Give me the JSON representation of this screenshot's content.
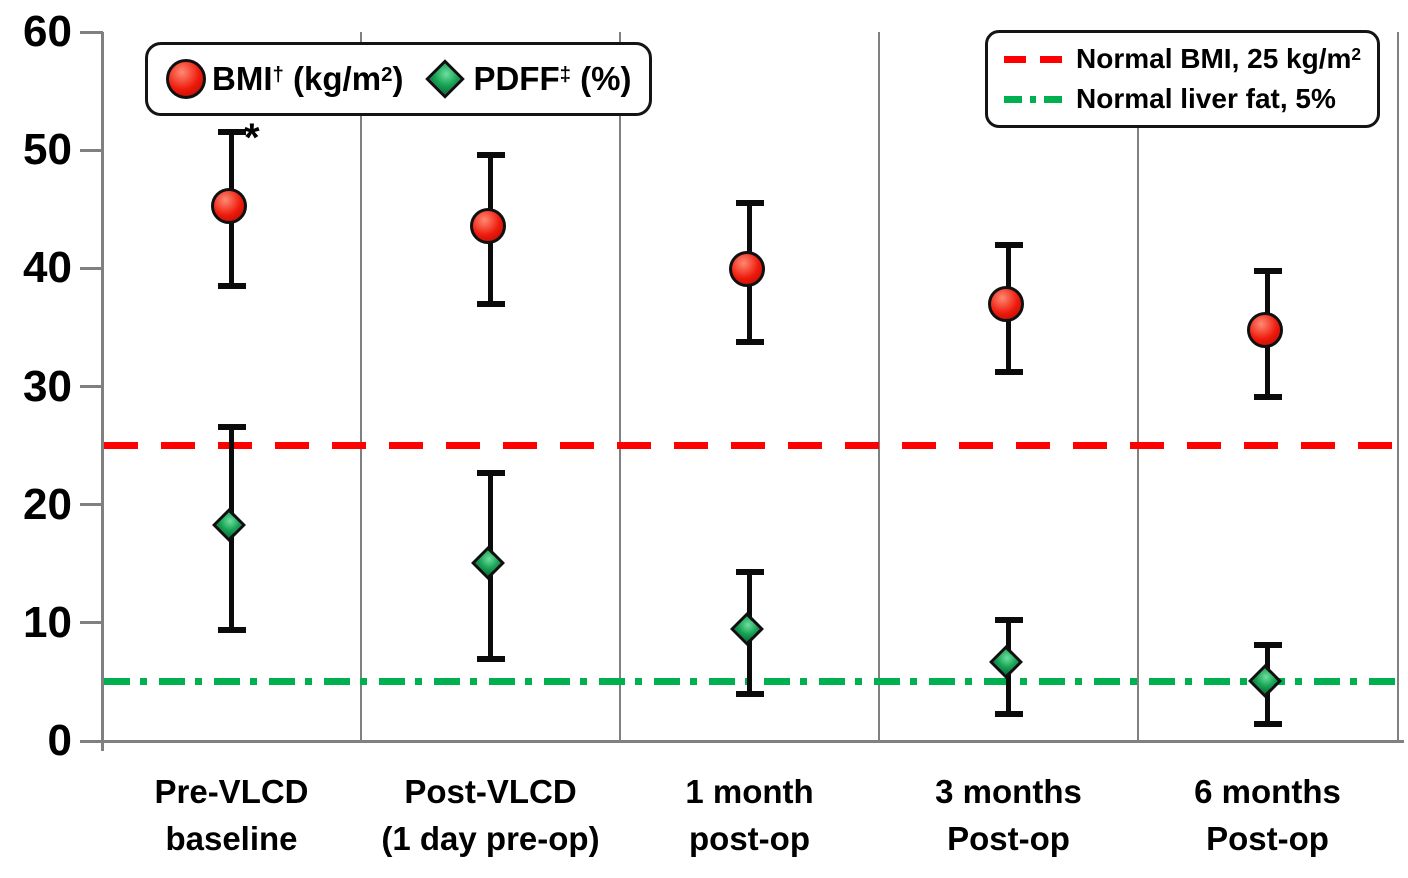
{
  "chart_data": {
    "type": "scatter",
    "description": "BMI and liver PDFF with error bars across five peri-operative time points",
    "categories": [
      {
        "line1": "Pre-VLCD",
        "line2": "baseline"
      },
      {
        "line1": "Post-VLCD",
        "line2": "(1 day pre-op)"
      },
      {
        "line1": "1 month",
        "line2": "post-op"
      },
      {
        "line1": "3 months",
        "line2": "Post-op"
      },
      {
        "line1": "6 months",
        "line2": "Post-op"
      }
    ],
    "y_axis": {
      "min": 0,
      "max": 60,
      "ticks": [
        0,
        10,
        20,
        30,
        40,
        50,
        60
      ]
    },
    "legend_position": "top",
    "grid": "vertical category dividers only",
    "axis_color": "#808080",
    "error_bar_color": "#0b0b0b",
    "text_color": "#000000",
    "series": [
      {
        "name": "BMI† (kg/m²)",
        "short_name": "BMI",
        "unit": "kg/m2",
        "marker": "circle",
        "color": "#ee1a0c",
        "marker_colors": {
          "light": "#ff8a72",
          "mid": "#ee1a0c",
          "dark": "#a80b04"
        },
        "values": [
          45.0,
          43.3,
          39.7,
          36.7,
          34.5
        ],
        "ci_low": [
          38.5,
          37.0,
          33.8,
          31.2,
          29.1
        ],
        "ci_high": [
          51.5,
          49.6,
          45.5,
          42.0,
          39.8
        ],
        "point_annotations": [
          "*",
          "",
          "",
          "",
          ""
        ]
      },
      {
        "name": "PDFF‡ (%)",
        "short_name": "PDFF",
        "unit": "%",
        "marker": "diamond",
        "color": "#17a455",
        "marker_colors": {
          "light": "#6fdfa0",
          "mid": "#17a455",
          "dark": "#086c35"
        },
        "values": [
          18.0,
          14.8,
          9.2,
          6.4,
          4.8
        ],
        "ci_low": [
          9.4,
          6.9,
          4.0,
          2.3,
          1.4
        ],
        "ci_high": [
          26.6,
          22.7,
          14.3,
          10.2,
          8.1
        ],
        "point_annotations": [
          "",
          "",
          "",
          "",
          ""
        ]
      }
    ],
    "reference_lines": [
      {
        "label": "Normal BMI, 25 kg/m²",
        "value": 25,
        "color": "#ff0000",
        "style": "dashed"
      },
      {
        "label": "Normal liver fat, 5%",
        "value": 5,
        "color": "#00b050",
        "style": "dash-dot"
      }
    ]
  },
  "legend_markers": {
    "items": [
      {
        "parts": [
          {
            "t": "BMI"
          },
          {
            "t": "†",
            "sup": true
          },
          {
            "t": " (kg/m"
          },
          {
            "t": "2",
            "sup": true
          },
          {
            "t": ")"
          }
        ]
      },
      {
        "parts": [
          {
            "t": "PDFF"
          },
          {
            "t": "‡",
            "sup": true
          },
          {
            "t": " (%)"
          }
        ]
      }
    ]
  },
  "legend_lines": {
    "items": [
      {
        "parts": [
          {
            "t": "Normal BMI, 25 kg/m"
          },
          {
            "t": "2",
            "sup": true
          }
        ]
      },
      {
        "parts": [
          {
            "t": "Normal liver fat, 5%"
          }
        ]
      }
    ]
  }
}
